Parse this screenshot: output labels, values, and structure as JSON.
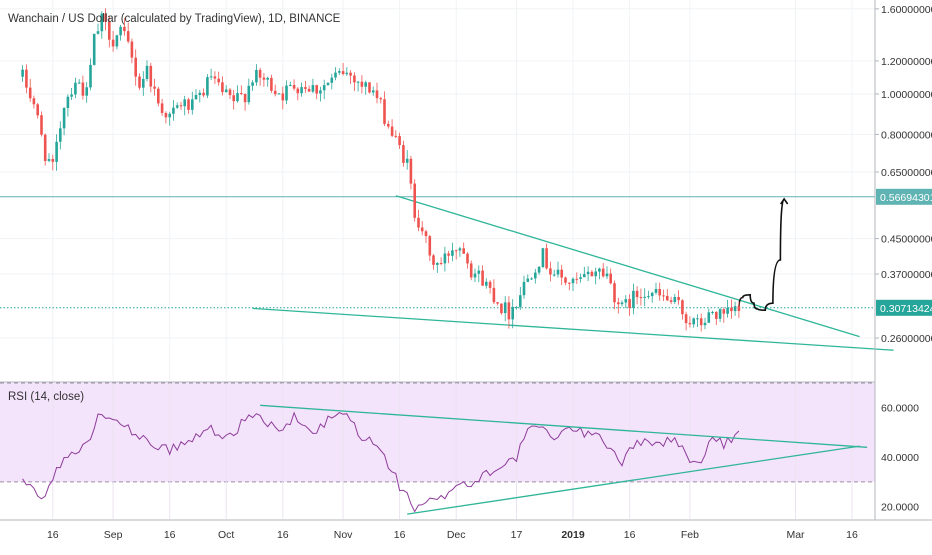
{
  "chart_data": [
    {
      "type": "candlestick",
      "title": "Wanchain / US Dollar (calculated by TradingView), 1D, BINANCE",
      "y_scale": "log",
      "ylim": [
        0.205,
        1.68
      ],
      "y_ticks": [
        "1.60000000",
        "1.20000000",
        "1.00000000",
        "0.80000000",
        "0.65000000",
        "0.45000000",
        "0.37000000",
        "0.26000000"
      ],
      "y_tick_values": [
        1.6,
        1.2,
        1.0,
        0.8,
        0.65,
        0.45,
        0.37,
        0.26
      ],
      "price_labels": [
        {
          "name": "resistance-level",
          "text": "0.56694301",
          "value": 0.56694301,
          "color": "#5fb3b3"
        },
        {
          "name": "last-price",
          "text": "0.30713424",
          "value": 0.30713424,
          "color": "#26a69a"
        }
      ],
      "x_ticks": [
        "16",
        "Sep",
        "16",
        "Oct",
        "16",
        "Nov",
        "16",
        "Dec",
        "17",
        "2019",
        "16",
        "Feb",
        "Mar",
        "16"
      ],
      "x_tick_dates": [
        "2018-08-16",
        "2018-09-01",
        "2018-09-16",
        "2018-10-01",
        "2018-10-16",
        "2018-11-01",
        "2018-11-16",
        "2018-12-01",
        "2018-12-17",
        "2019-01-01",
        "2019-01-16",
        "2019-02-01",
        "2019-03-01",
        "2019-03-16"
      ],
      "x_tick_bold": [
        false,
        false,
        false,
        false,
        false,
        false,
        false,
        false,
        false,
        true,
        false,
        false,
        false,
        false
      ],
      "price_path": [
        [
          "2018-08-08",
          1.1
        ],
        [
          "2018-08-11",
          0.95
        ],
        [
          "2018-08-14",
          0.72
        ],
        [
          "2018-08-16",
          0.66
        ],
        [
          "2018-08-19",
          0.95
        ],
        [
          "2018-08-22",
          1.08
        ],
        [
          "2018-08-25",
          1.0
        ],
        [
          "2018-08-27",
          1.35
        ],
        [
          "2018-08-29",
          1.5
        ],
        [
          "2018-09-01",
          1.35
        ],
        [
          "2018-09-03",
          1.42
        ],
        [
          "2018-09-05",
          1.3
        ],
        [
          "2018-09-08",
          1.05
        ],
        [
          "2018-09-10",
          1.15
        ],
        [
          "2018-09-13",
          0.95
        ],
        [
          "2018-09-16",
          0.88
        ],
        [
          "2018-09-19",
          0.95
        ],
        [
          "2018-09-22",
          0.93
        ],
        [
          "2018-09-25",
          1.02
        ],
        [
          "2018-09-27",
          1.1
        ],
        [
          "2018-09-30",
          1.0
        ],
        [
          "2018-10-03",
          0.96
        ],
        [
          "2018-10-06",
          1.0
        ],
        [
          "2018-10-08",
          1.1
        ],
        [
          "2018-10-11",
          1.08
        ],
        [
          "2018-10-14",
          1.03
        ],
        [
          "2018-10-16",
          1.0
        ],
        [
          "2018-10-19",
          1.05
        ],
        [
          "2018-10-22",
          1.05
        ],
        [
          "2018-10-25",
          1.03
        ],
        [
          "2018-10-28",
          1.06
        ],
        [
          "2018-11-01",
          1.13
        ],
        [
          "2018-11-04",
          1.1
        ],
        [
          "2018-11-06",
          1.05
        ],
        [
          "2018-11-09",
          1.02
        ],
        [
          "2018-11-11",
          0.93
        ],
        [
          "2018-11-14",
          0.8
        ],
        [
          "2018-11-16",
          0.74
        ],
        [
          "2018-11-18",
          0.68
        ],
        [
          "2018-11-20",
          0.52
        ],
        [
          "2018-11-22",
          0.48
        ],
        [
          "2018-11-24",
          0.4
        ],
        [
          "2018-11-27",
          0.39
        ],
        [
          "2018-11-30",
          0.43
        ],
        [
          "2018-12-03",
          0.43
        ],
        [
          "2018-12-05",
          0.38
        ],
        [
          "2018-12-08",
          0.36
        ],
        [
          "2018-12-11",
          0.33
        ],
        [
          "2018-12-13",
          0.31
        ],
        [
          "2018-12-15",
          0.3
        ],
        [
          "2018-12-17",
          0.32
        ],
        [
          "2018-12-19",
          0.35
        ],
        [
          "2018-12-22",
          0.39
        ],
        [
          "2018-12-24",
          0.41
        ],
        [
          "2018-12-26",
          0.38
        ],
        [
          "2018-12-29",
          0.36
        ],
        [
          "2019-01-01",
          0.35
        ],
        [
          "2019-01-04",
          0.36
        ],
        [
          "2019-01-07",
          0.38
        ],
        [
          "2019-01-10",
          0.37
        ],
        [
          "2019-01-12",
          0.33
        ],
        [
          "2019-01-14",
          0.305
        ],
        [
          "2019-01-17",
          0.325
        ],
        [
          "2019-01-20",
          0.34
        ],
        [
          "2019-01-23",
          0.33
        ],
        [
          "2019-01-26",
          0.32
        ],
        [
          "2019-01-29",
          0.31
        ],
        [
          "2019-01-31",
          0.29
        ],
        [
          "2019-02-03",
          0.28
        ],
        [
          "2019-02-05",
          0.285
        ],
        [
          "2019-02-07",
          0.3
        ],
        [
          "2019-02-10",
          0.29
        ],
        [
          "2019-02-12",
          0.3
        ],
        [
          "2019-02-14",
          0.305
        ]
      ],
      "annotations": [
        {
          "name": "resistance-line",
          "type": "hline",
          "value": 0.56694301,
          "color": "#5fb3b3"
        },
        {
          "name": "current-price-line",
          "type": "hline",
          "value": 0.30713424,
          "color": "#26a69a",
          "dotted": true
        },
        {
          "name": "descending-trendline",
          "type": "line",
          "from": [
            "2018-11-15",
            0.57
          ],
          "to": [
            "2019-03-18",
            0.262
          ],
          "color": "#2fb598"
        },
        {
          "name": "support-trendline",
          "type": "line",
          "from": [
            "2018-10-08",
            0.306
          ],
          "to": [
            "2019-03-27",
            0.243
          ],
          "color": "#2fb598"
        },
        {
          "name": "projection-path",
          "type": "path",
          "color": "#111111",
          "points": [
            [
              "2019-02-14",
              0.305
            ],
            [
              "2019-02-15",
              0.325
            ],
            [
              "2019-02-17",
              0.33
            ],
            [
              "2019-02-18",
              0.315
            ],
            [
              "2019-02-19",
              0.305
            ],
            [
              "2019-02-21",
              0.303
            ],
            [
              "2019-02-23",
              0.315
            ],
            [
              "2019-02-25",
              0.4
            ],
            [
              "2019-02-26",
              0.56
            ]
          ]
        }
      ]
    },
    {
      "type": "line",
      "title": "RSI (14, close)",
      "ylim": [
        15,
        70
      ],
      "y_ticks": [
        "60.0000",
        "40.0000",
        "20.0000"
      ],
      "y_tick_values": [
        60,
        40,
        20
      ],
      "band": [
        30,
        70
      ],
      "series_color": "#8e3d9a",
      "band_color": "#f3e3fb",
      "rsi_path": [
        [
          "2018-08-08",
          30
        ],
        [
          "2018-08-11",
          27
        ],
        [
          "2018-08-14",
          24
        ],
        [
          "2018-08-16",
          32
        ],
        [
          "2018-08-19",
          39
        ],
        [
          "2018-08-22",
          42
        ],
        [
          "2018-08-25",
          45
        ],
        [
          "2018-08-27",
          53
        ],
        [
          "2018-08-29",
          58
        ],
        [
          "2018-09-01",
          57
        ],
        [
          "2018-09-03",
          55
        ],
        [
          "2018-09-05",
          52
        ],
        [
          "2018-09-08",
          46
        ],
        [
          "2018-09-10",
          48
        ],
        [
          "2018-09-13",
          44
        ],
        [
          "2018-09-16",
          43
        ],
        [
          "2018-09-19",
          45
        ],
        [
          "2018-09-22",
          47
        ],
        [
          "2018-09-25",
          50
        ],
        [
          "2018-09-27",
          52
        ],
        [
          "2018-09-30",
          48
        ],
        [
          "2018-10-03",
          50
        ],
        [
          "2018-10-06",
          55
        ],
        [
          "2018-10-08",
          58
        ],
        [
          "2018-10-11",
          54
        ],
        [
          "2018-10-14",
          53
        ],
        [
          "2018-10-16",
          50
        ],
        [
          "2018-10-19",
          56
        ],
        [
          "2018-10-22",
          52
        ],
        [
          "2018-10-25",
          50
        ],
        [
          "2018-10-28",
          55
        ],
        [
          "2018-11-01",
          58
        ],
        [
          "2018-11-04",
          53
        ],
        [
          "2018-11-06",
          48
        ],
        [
          "2018-11-09",
          46
        ],
        [
          "2018-11-11",
          42
        ],
        [
          "2018-11-14",
          35
        ],
        [
          "2018-11-16",
          28
        ],
        [
          "2018-11-18",
          26
        ],
        [
          "2018-11-20",
          18
        ],
        [
          "2018-11-22",
          20
        ],
        [
          "2018-11-24",
          22
        ],
        [
          "2018-11-27",
          23
        ],
        [
          "2018-11-30",
          28
        ],
        [
          "2018-12-03",
          30
        ],
        [
          "2018-12-05",
          28
        ],
        [
          "2018-12-08",
          33
        ],
        [
          "2018-12-11",
          35
        ],
        [
          "2018-12-13",
          37
        ],
        [
          "2018-12-15",
          38
        ],
        [
          "2018-12-17",
          40
        ],
        [
          "2018-12-19",
          48
        ],
        [
          "2018-12-22",
          53
        ],
        [
          "2018-12-24",
          51
        ],
        [
          "2018-12-26",
          48
        ],
        [
          "2018-12-29",
          50
        ],
        [
          "2019-01-01",
          52
        ],
        [
          "2019-01-04",
          49
        ],
        [
          "2019-01-07",
          51
        ],
        [
          "2019-01-10",
          45
        ],
        [
          "2019-01-12",
          42
        ],
        [
          "2019-01-14",
          38
        ],
        [
          "2019-01-17",
          44
        ],
        [
          "2019-01-20",
          48
        ],
        [
          "2019-01-23",
          45
        ],
        [
          "2019-01-26",
          47
        ],
        [
          "2019-01-29",
          46
        ],
        [
          "2019-01-31",
          40
        ],
        [
          "2019-02-03",
          37
        ],
        [
          "2019-02-05",
          42
        ],
        [
          "2019-02-07",
          48
        ],
        [
          "2019-02-10",
          45
        ],
        [
          "2019-02-12",
          47
        ],
        [
          "2019-02-14",
          52
        ]
      ],
      "annotations": [
        {
          "name": "rsi-descending-trendline",
          "type": "line",
          "from": [
            "2018-10-10",
            61
          ],
          "to": [
            "2019-03-20",
            44
          ],
          "color": "#2fb598"
        },
        {
          "name": "rsi-ascending-trendline",
          "type": "line",
          "from": [
            "2018-11-18",
            17
          ],
          "to": [
            "2019-03-18",
            44.5
          ],
          "color": "#2fb598"
        }
      ]
    }
  ]
}
